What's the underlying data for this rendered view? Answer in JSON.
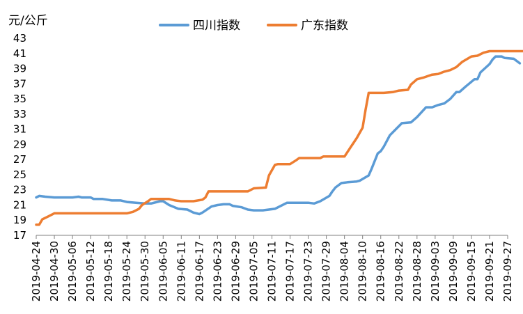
{
  "chart_data": {
    "type": "line",
    "ylabel": "元/公斤",
    "ylim": [
      17,
      43
    ],
    "yticks": [
      17,
      19,
      21,
      23,
      25,
      27,
      29,
      31,
      33,
      35,
      37,
      39,
      41,
      43
    ],
    "x_range": [
      "2019-04-24",
      "2019-09-27"
    ],
    "x_tick_labels": [
      "2019-04-24",
      "2019-04-30",
      "2019-05-06",
      "2019-05-12",
      "2019-05-18",
      "2019-05-24",
      "2019-05-30",
      "2019-06-05",
      "2019-06-11",
      "2019-06-17",
      "2019-06-23",
      "2019-06-29",
      "2019-07-05",
      "2019-07-11",
      "2019-07-17",
      "2019-07-23",
      "2019-07-29",
      "2019-08-04",
      "2019-08-10",
      "2019-08-16",
      "2019-08-22",
      "2019-08-28",
      "2019-09-03",
      "2019-09-09",
      "2019-09-15",
      "2019-09-21",
      "2019-09-27"
    ],
    "grid": false,
    "legend_position": "top-center",
    "series": [
      {
        "name": "四川指数",
        "color": "#5b9bd5",
        "points": [
          [
            "2019-04-24",
            22.0
          ],
          [
            "2019-04-25",
            22.2
          ],
          [
            "2019-04-27",
            22.1
          ],
          [
            "2019-04-30",
            22.0
          ],
          [
            "2019-05-06",
            22.0
          ],
          [
            "2019-05-08",
            22.1
          ],
          [
            "2019-05-09",
            22.0
          ],
          [
            "2019-05-12",
            22.0
          ],
          [
            "2019-05-13",
            21.8
          ],
          [
            "2019-05-16",
            21.8
          ],
          [
            "2019-05-19",
            21.6
          ],
          [
            "2019-05-22",
            21.6
          ],
          [
            "2019-05-24",
            21.4
          ],
          [
            "2019-05-27",
            21.3
          ],
          [
            "2019-05-30",
            21.2
          ],
          [
            "2019-06-01",
            21.2
          ],
          [
            "2019-06-04",
            21.5
          ],
          [
            "2019-06-05",
            21.5
          ],
          [
            "2019-06-07",
            21.0
          ],
          [
            "2019-06-10",
            20.5
          ],
          [
            "2019-06-13",
            20.4
          ],
          [
            "2019-06-15",
            20.0
          ],
          [
            "2019-06-17",
            19.8
          ],
          [
            "2019-06-18",
            20.0
          ],
          [
            "2019-06-21",
            20.8
          ],
          [
            "2019-06-23",
            21.0
          ],
          [
            "2019-06-25",
            21.1
          ],
          [
            "2019-06-27",
            21.1
          ],
          [
            "2019-06-28",
            20.9
          ],
          [
            "2019-07-01",
            20.7
          ],
          [
            "2019-07-03",
            20.4
          ],
          [
            "2019-07-05",
            20.3
          ],
          [
            "2019-07-08",
            20.3
          ],
          [
            "2019-07-10",
            20.4
          ],
          [
            "2019-07-12",
            20.5
          ],
          [
            "2019-07-14",
            20.9
          ],
          [
            "2019-07-16",
            21.3
          ],
          [
            "2019-07-20",
            21.3
          ],
          [
            "2019-07-23",
            21.3
          ],
          [
            "2019-07-25",
            21.2
          ],
          [
            "2019-07-27",
            21.5
          ],
          [
            "2019-07-30",
            22.2
          ],
          [
            "2019-07-31",
            22.8
          ],
          [
            "2019-08-01",
            23.3
          ],
          [
            "2019-08-03",
            23.9
          ],
          [
            "2019-08-05",
            24.0
          ],
          [
            "2019-08-08",
            24.1
          ],
          [
            "2019-08-09",
            24.2
          ],
          [
            "2019-08-12",
            24.9
          ],
          [
            "2019-08-13",
            25.8
          ],
          [
            "2019-08-15",
            27.8
          ],
          [
            "2019-08-16",
            28.1
          ],
          [
            "2019-08-17",
            28.7
          ],
          [
            "2019-08-19",
            30.2
          ],
          [
            "2019-08-21",
            31.0
          ],
          [
            "2019-08-23",
            31.8
          ],
          [
            "2019-08-26",
            31.9
          ],
          [
            "2019-08-28",
            32.6
          ],
          [
            "2019-08-31",
            33.9
          ],
          [
            "2019-09-02",
            33.9
          ],
          [
            "2019-09-04",
            34.2
          ],
          [
            "2019-09-06",
            34.4
          ],
          [
            "2019-09-08",
            35.0
          ],
          [
            "2019-09-10",
            35.9
          ],
          [
            "2019-09-11",
            35.9
          ],
          [
            "2019-09-13",
            36.6
          ],
          [
            "2019-09-16",
            37.6
          ],
          [
            "2019-09-17",
            37.6
          ],
          [
            "2019-09-18",
            38.5
          ],
          [
            "2019-09-21",
            39.6
          ],
          [
            "2019-09-22",
            40.2
          ],
          [
            "2019-09-23",
            40.6
          ],
          [
            "2019-09-25",
            40.6
          ],
          [
            "2019-09-26",
            40.4
          ],
          [
            "2019-09-29",
            40.3
          ],
          [
            "2019-10-01",
            39.7
          ]
        ]
      },
      {
        "name": "广东指数",
        "color": "#ed7d31",
        "points": [
          [
            "2019-04-24",
            18.4
          ],
          [
            "2019-04-25",
            18.4
          ],
          [
            "2019-04-26",
            19.1
          ],
          [
            "2019-04-28",
            19.5
          ],
          [
            "2019-04-30",
            19.9
          ],
          [
            "2019-05-06",
            19.9
          ],
          [
            "2019-05-12",
            19.9
          ],
          [
            "2019-05-18",
            19.9
          ],
          [
            "2019-05-24",
            19.9
          ],
          [
            "2019-05-26",
            20.1
          ],
          [
            "2019-05-28",
            20.5
          ],
          [
            "2019-05-29",
            21.0
          ],
          [
            "2019-05-31",
            21.5
          ],
          [
            "2019-06-01",
            21.8
          ],
          [
            "2019-06-05",
            21.8
          ],
          [
            "2019-06-07",
            21.8
          ],
          [
            "2019-06-09",
            21.6
          ],
          [
            "2019-06-11",
            21.5
          ],
          [
            "2019-06-15",
            21.5
          ],
          [
            "2019-06-18",
            21.7
          ],
          [
            "2019-06-19",
            22.0
          ],
          [
            "2019-06-20",
            22.8
          ],
          [
            "2019-06-26",
            22.8
          ],
          [
            "2019-07-02",
            22.8
          ],
          [
            "2019-07-03",
            22.8
          ],
          [
            "2019-07-05",
            23.2
          ],
          [
            "2019-07-09",
            23.3
          ],
          [
            "2019-07-10",
            24.9
          ],
          [
            "2019-07-12",
            26.3
          ],
          [
            "2019-07-13",
            26.4
          ],
          [
            "2019-07-15",
            26.4
          ],
          [
            "2019-07-17",
            26.4
          ],
          [
            "2019-07-19",
            26.9
          ],
          [
            "2019-07-20",
            27.2
          ],
          [
            "2019-07-27",
            27.2
          ],
          [
            "2019-07-28",
            27.4
          ],
          [
            "2019-08-04",
            27.4
          ],
          [
            "2019-08-06",
            28.6
          ],
          [
            "2019-08-08",
            29.8
          ],
          [
            "2019-08-10",
            31.2
          ],
          [
            "2019-08-11",
            33.6
          ],
          [
            "2019-08-12",
            35.8
          ],
          [
            "2019-08-17",
            35.8
          ],
          [
            "2019-08-20",
            35.9
          ],
          [
            "2019-08-22",
            36.1
          ],
          [
            "2019-08-25",
            36.2
          ],
          [
            "2019-08-26",
            36.9
          ],
          [
            "2019-08-28",
            37.6
          ],
          [
            "2019-08-30",
            37.8
          ],
          [
            "2019-09-02",
            38.2
          ],
          [
            "2019-09-04",
            38.3
          ],
          [
            "2019-09-06",
            38.6
          ],
          [
            "2019-09-08",
            38.8
          ],
          [
            "2019-09-10",
            39.2
          ],
          [
            "2019-09-12",
            39.9
          ],
          [
            "2019-09-15",
            40.6
          ],
          [
            "2019-09-17",
            40.7
          ],
          [
            "2019-09-19",
            41.1
          ],
          [
            "2019-09-21",
            41.3
          ],
          [
            "2019-10-01",
            41.3
          ],
          [
            "2019-10-05",
            41.3
          ]
        ]
      }
    ]
  }
}
